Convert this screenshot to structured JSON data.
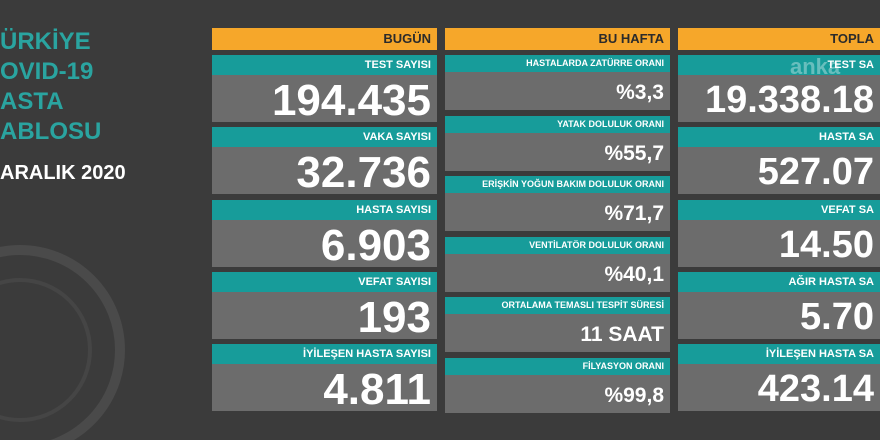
{
  "watermark": "anka",
  "left_title": {
    "lines": [
      "ÜRKİYE",
      "OVID-19",
      "ASTA",
      "ABLOSU"
    ],
    "date": "ARALIK 2020"
  },
  "columns": [
    {
      "header": "BUGÜN",
      "rows": [
        {
          "label": "TEST SAYISI",
          "value": "194.435"
        },
        {
          "label": "VAKA SAYISI",
          "value": "32.736"
        },
        {
          "label": "HASTA SAYISI",
          "value": "6.903"
        },
        {
          "label": "VEFAT SAYISI",
          "value": "193"
        },
        {
          "label": "İYİLEŞEN HASTA SAYISI",
          "value": "4.811"
        }
      ]
    },
    {
      "header": "BU HAFTA",
      "rows": [
        {
          "label": "HASTALARDA ZATÜRRE ORANI",
          "value": "%3,3"
        },
        {
          "label": "YATAK DOLULUK ORANI",
          "value": "%55,7"
        },
        {
          "label": "ERİŞKİN YOĞUN BAKIM DOLULUK ORANI",
          "value": "%71,7"
        },
        {
          "label": "VENTİLATÖR DOLULUK ORANI",
          "value": "%40,1"
        },
        {
          "label": "ORTALAMA TEMASLI TESPİT SÜRESİ",
          "value": "11 SAAT"
        },
        {
          "label": "FİLYASYON ORANI",
          "value": "%99,8"
        }
      ]
    },
    {
      "header": "TOPLA",
      "rows": [
        {
          "label": "TEST SA",
          "value": "19.338.18"
        },
        {
          "label": "HASTA SA",
          "value": "527.07"
        },
        {
          "label": "VEFAT SA",
          "value": "14.50"
        },
        {
          "label": "AĞIR HASTA SA",
          "value": "5.70"
        },
        {
          "label": "İYİLEŞEN HASTA SA",
          "value": "423.14"
        }
      ]
    }
  ]
}
